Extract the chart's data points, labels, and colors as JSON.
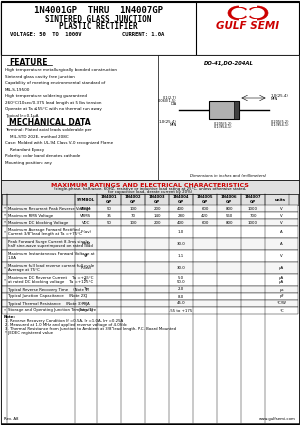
{
  "title_line1": "1N4001GP  THRU  1N4007GP",
  "title_line2": "SINTERED GLASS JUNCTION",
  "title_line3": "PLASTIC RECTIFIER",
  "title_line4_left": "VOLTAGE: 50  TO  1000V",
  "title_line4_right": "CURRENT: 1.0A",
  "brand": "GULF SEMI",
  "feature_title": "FEATURE",
  "features": [
    "High temperature metallurgically bonded construction",
    "Sintered glass cavity free junction",
    "Capability of meeting environmental standard of",
    "MIL-S-19500",
    "High temperature soldering guaranteed",
    "260°C/10sec/0.375 lead length at 5 lbs tension",
    "Operate at Ta ≤55°C with no thermal run away",
    "Typical Ir=0.1μA"
  ],
  "mech_title": "MECHANICAL DATA",
  "mech_data": [
    "Terminal: Plated axial leads solderable per",
    "    MIL-STD 202E, method 208C",
    "Case: Molded with UL-94 Class V-0 recognized Flame",
    "    Retardant Epoxy",
    "Polarity: color band denotes cathode",
    "Mounting position: any"
  ],
  "package_label": "DO-41,DO-204AL",
  "table_title": "MAXIMUM RATINGS AND ELECTRICAL CHARACTERISTICS",
  "table_subtitle": "(single-phase, half-wave, 60HZ, resistive or inductive load rating at 25°C, unless otherwise stated,",
  "table_subtitle2": "for capacitive load, derate current by 20%)",
  "part_labels": [
    "1N4001\nGP",
    "1N4002\nGP",
    "1N4003\nGP",
    "1N4004\nGP",
    "1N4005\nGP",
    "1N4006\nGP",
    "1N4007\nGP"
  ],
  "row_data": [
    [
      "*",
      "Maximum Recurrent Peak Reverse Voltage",
      "VRRM",
      [
        "50",
        "100",
        "200",
        "400",
        "600",
        "800",
        "1000"
      ],
      "V"
    ],
    [
      "*",
      "Maximum RMS Voltage",
      "VRMS",
      [
        "35",
        "70",
        "140",
        "280",
        "420",
        "560",
        "700"
      ],
      "V"
    ],
    [
      "*",
      "Maximum DC blocking Voltage",
      "VDC",
      [
        "50",
        "100",
        "200",
        "400",
        "600",
        "800",
        "1000"
      ],
      "V"
    ],
    [
      "*",
      "Maximum Average Forward Rectified\nCurrent 3/8\"lead length at Ta =+75°C",
      "IF(av)",
      [
        "",
        "",
        "",
        "1.0",
        "",
        "",
        ""
      ],
      "A"
    ],
    [
      "",
      "Peak Forward Surge Current 8.3ms single\nhalf sine-wave superimposed on rated load",
      "IFSM",
      [
        "",
        "",
        "",
        "30.0",
        "",
        "",
        ""
      ],
      "A"
    ],
    [
      "",
      "Maximum Instantaneous Forward Voltage at\n1.0A",
      "VF",
      [
        "",
        "",
        "",
        "1.1",
        "",
        "",
        ""
      ],
      "V"
    ],
    [
      "*",
      "Maximum full load reverse current full cycle\nAverage at 75°C",
      "IR(av)",
      [
        "",
        "",
        "",
        "30.0",
        "",
        "",
        ""
      ],
      "μA"
    ],
    [
      "*",
      "Maximum DC Reverse Current    Ta =+25°C\nat rated DC blocking voltage    Ta =+125°C",
      "IR",
      [
        "",
        "",
        "",
        "5.0\n50.0",
        "",
        "",
        ""
      ],
      "μA\nμA"
    ],
    [
      "",
      "Typical Reverse Recovery Time    (Note 1)",
      "Trr",
      [
        "",
        "",
        "",
        "2.0",
        "",
        "",
        ""
      ],
      "μs"
    ],
    [
      "",
      "Typical Junction Capacitance    (Note 2)",
      "CJ",
      [
        "",
        "",
        "",
        "8.0",
        "",
        "",
        ""
      ],
      "pF"
    ],
    [
      "",
      "Typical Thermal Resistance    (Note 3)",
      "RθJA",
      [
        "",
        "",
        "",
        "45.0",
        "",
        "",
        ""
      ],
      "°C/W"
    ],
    [
      "*",
      "Storage and Operating Junction Temperature",
      "Tstg, TJ",
      [
        "",
        "",
        "",
        "-55 to +175",
        "",
        "",
        ""
      ],
      "°C"
    ]
  ],
  "notes": [
    "1. Reverse Recovery Condition If =0.5A, Ir =1.0A, Irr =0.25A",
    "2. Measured at 1.0 MHz and applied reverse voltage of 4.0Vdc",
    "3. Thermal Resistance from Junction to Ambient at 3/8\"lead length, P.C. Board Mounted",
    "* JEDEC registered value"
  ],
  "rev": "Rev. A8",
  "website": "www.gulfsemi.com",
  "red_color": "#cc0000"
}
